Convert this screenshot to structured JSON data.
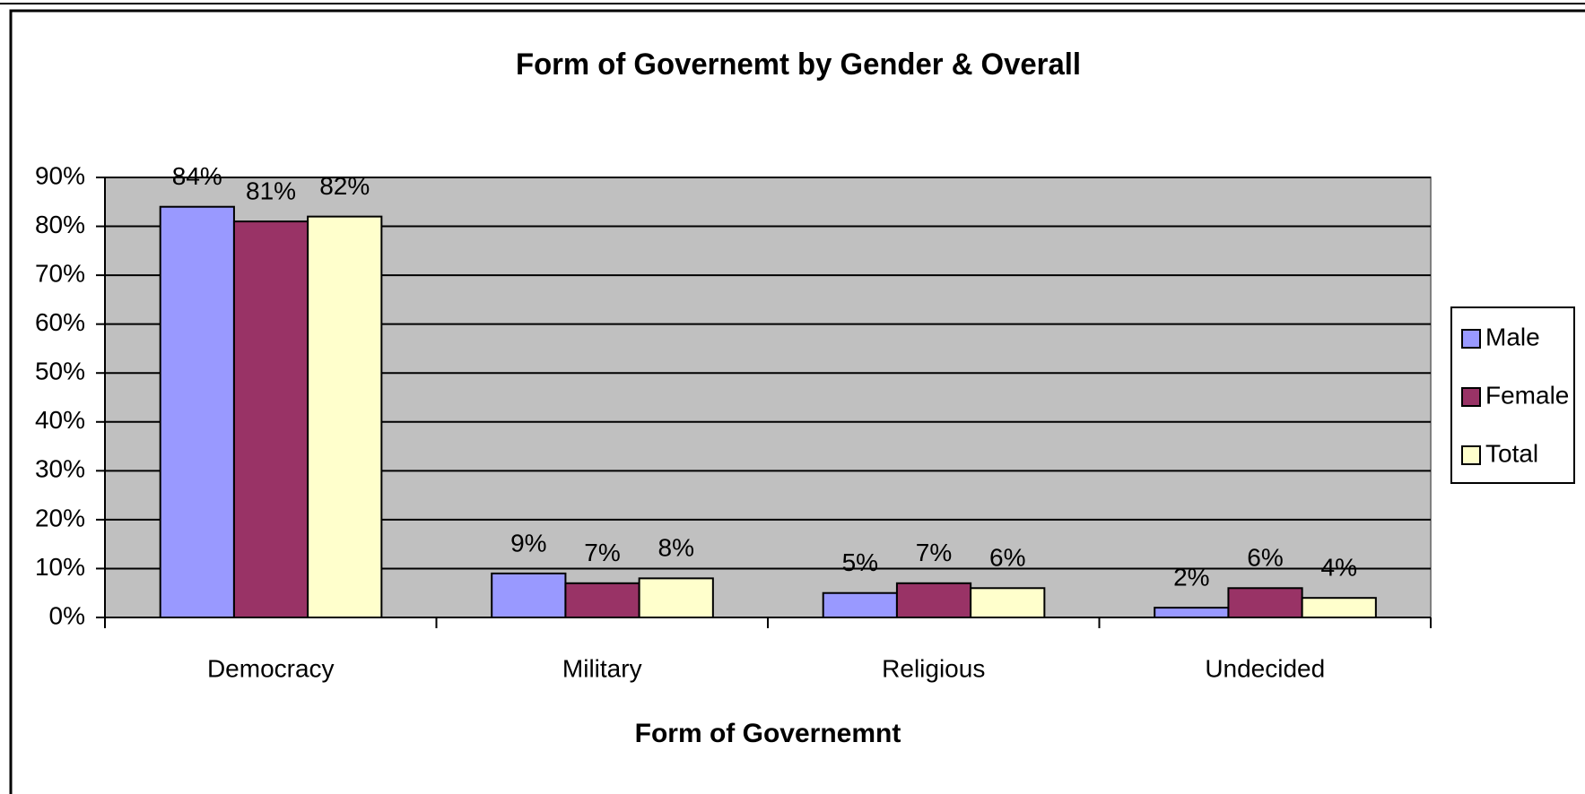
{
  "chart_data": {
    "type": "bar",
    "title": "Form of Governemt by Gender & Overall",
    "x_label": "Form of Governemnt",
    "categories": [
      "Democracy",
      "Military",
      "Religious",
      "Undecided"
    ],
    "series": [
      {
        "name": "Male",
        "color": "#9999ff",
        "values": [
          84,
          9,
          5,
          2
        ],
        "value_labels": [
          "84%",
          "9%",
          "5%",
          "2%"
        ]
      },
      {
        "name": "Female",
        "color": "#993366",
        "values": [
          81,
          7,
          7,
          6
        ],
        "value_labels": [
          "81%",
          "7%",
          "7%",
          "6%"
        ]
      },
      {
        "name": "Total",
        "color": "#ffffcc",
        "values": [
          82,
          8,
          6,
          4
        ],
        "value_labels": [
          "82%",
          "8%",
          "6%",
          "4%"
        ]
      }
    ],
    "ylim": [
      0,
      90
    ],
    "yticks": [
      {
        "value": 0,
        "label": "0%"
      },
      {
        "value": 10,
        "label": "10%"
      },
      {
        "value": 20,
        "label": "20%"
      },
      {
        "value": 30,
        "label": "30%"
      },
      {
        "value": 40,
        "label": "40%"
      },
      {
        "value": 50,
        "label": "50%"
      },
      {
        "value": 60,
        "label": "60%"
      },
      {
        "value": 70,
        "label": "70%"
      },
      {
        "value": 80,
        "label": "80%"
      },
      {
        "value": 90,
        "label": "90%"
      }
    ],
    "grid": true,
    "legend": "right"
  }
}
